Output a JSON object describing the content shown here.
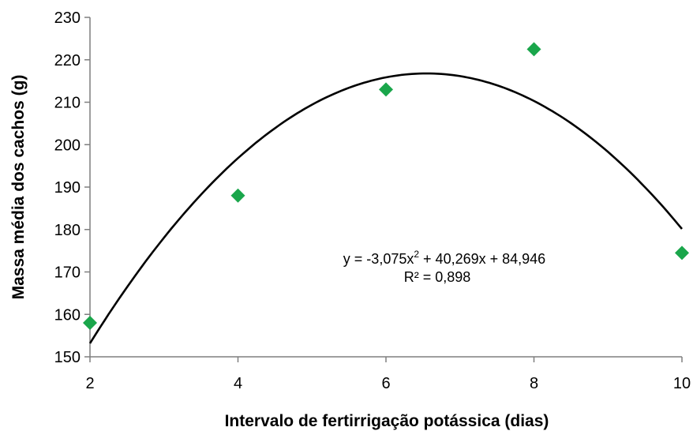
{
  "chart_data": {
    "type": "scatter",
    "xlabel": "Intervalo de fertirrigação potássica (dias)",
    "ylabel": "Massa média dos cachos (g)",
    "xlim": [
      2,
      10
    ],
    "ylim": [
      150,
      230
    ],
    "xticks": [
      "2",
      "4",
      "6",
      "8",
      "10"
    ],
    "yticks": [
      "150",
      "160",
      "170",
      "180",
      "190",
      "200",
      "210",
      "220",
      "230"
    ],
    "series": [
      {
        "marker": "diamond",
        "color": "#1aa64b",
        "x": [
          2,
          4,
          6,
          8,
          10
        ],
        "y": [
          158,
          188,
          213,
          222.5,
          174.5
        ]
      }
    ],
    "trendline": {
      "type": "polynomial",
      "coefficients": {
        "a": -3.075,
        "b": 40.269,
        "c": 84.946
      },
      "color": "#000000",
      "equation_parts": [
        "y = -3,075x",
        "2",
        " + 40,269x + 84,946"
      ],
      "r2_label": "R² = 0,898"
    },
    "grid": false
  }
}
